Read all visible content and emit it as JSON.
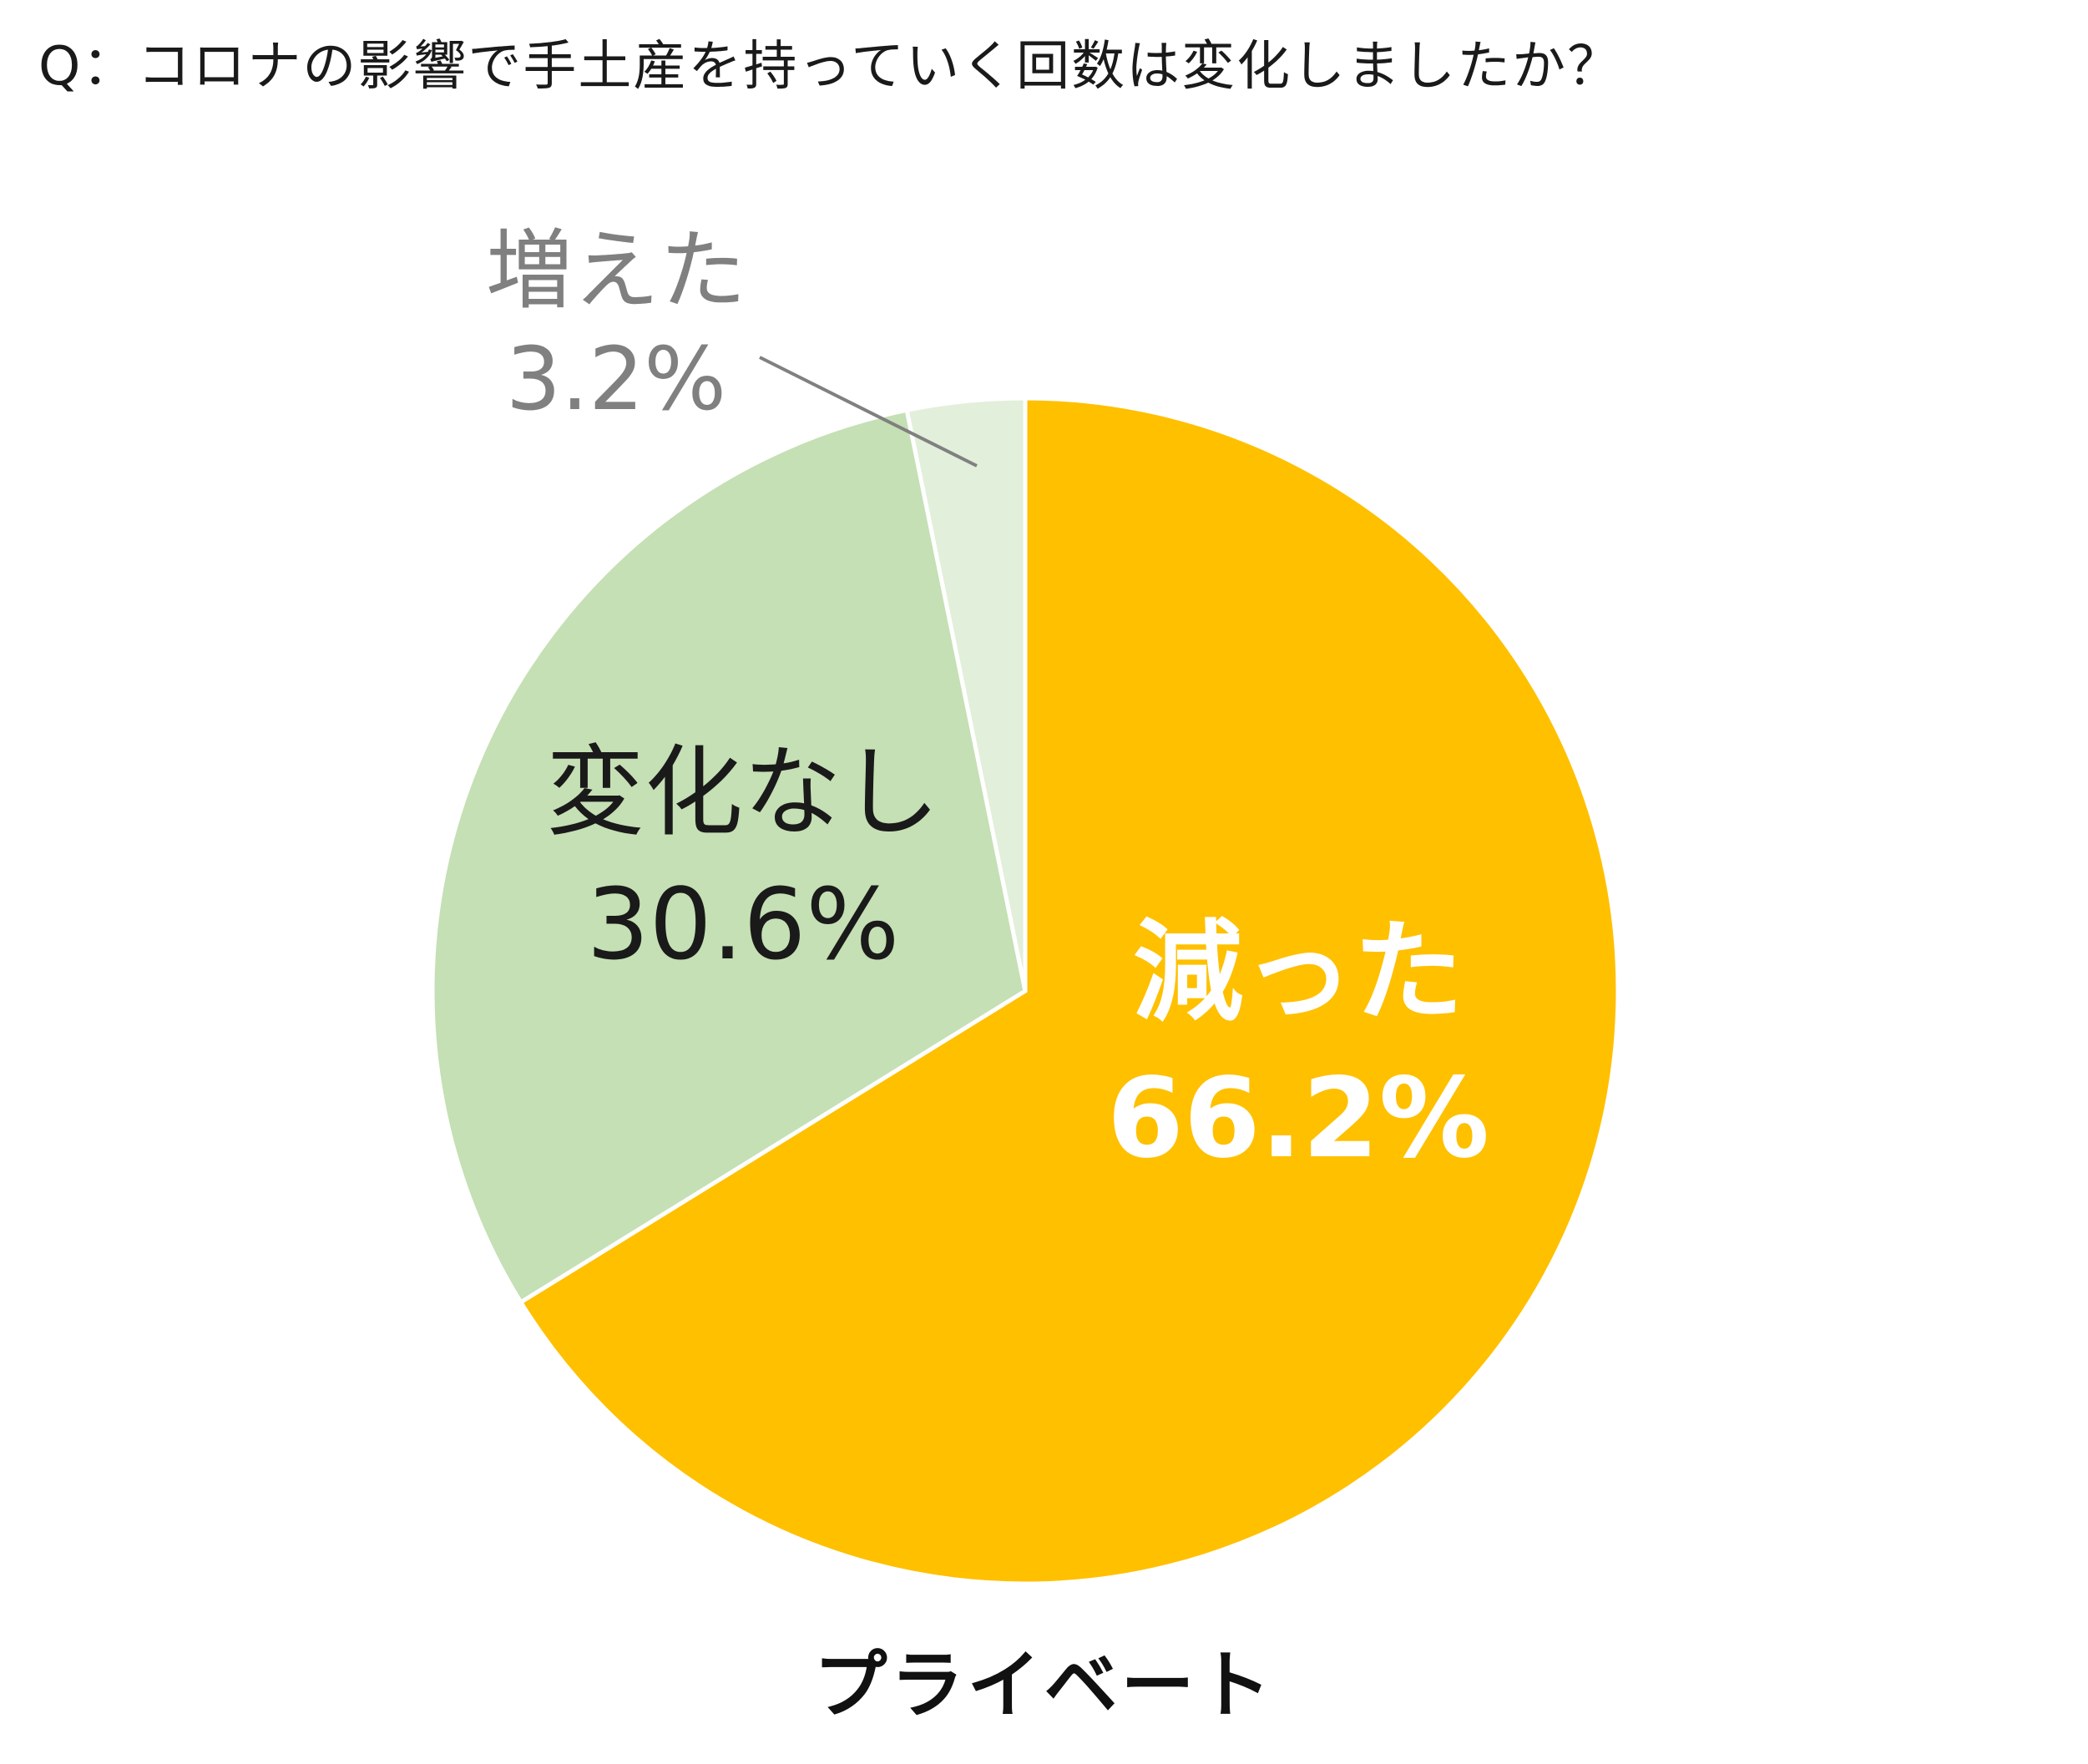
{
  "chart_data": {
    "type": "pie",
    "title": "Q：コロナの影響で手土産を持っていく回数は変化しましたか？",
    "caption": "プライベート",
    "slices": [
      {
        "label": "減った",
        "value_label": "66.2%",
        "value": 66.2,
        "color": "#FFC000",
        "text_color": "#FFFFFF",
        "bold": true
      },
      {
        "label": "変化なし",
        "value_label": "30.6%",
        "value": 30.6,
        "color": "#C5E0B4",
        "text_color": "#1A1A1A",
        "bold": false
      },
      {
        "label": "増えた",
        "value_label": "3.2%",
        "value": 3.2,
        "color": "#E2EFDA",
        "text_color": "#808080",
        "bold": false
      }
    ],
    "legend": "none",
    "start_angle": "12 o'clock, clockwise"
  }
}
